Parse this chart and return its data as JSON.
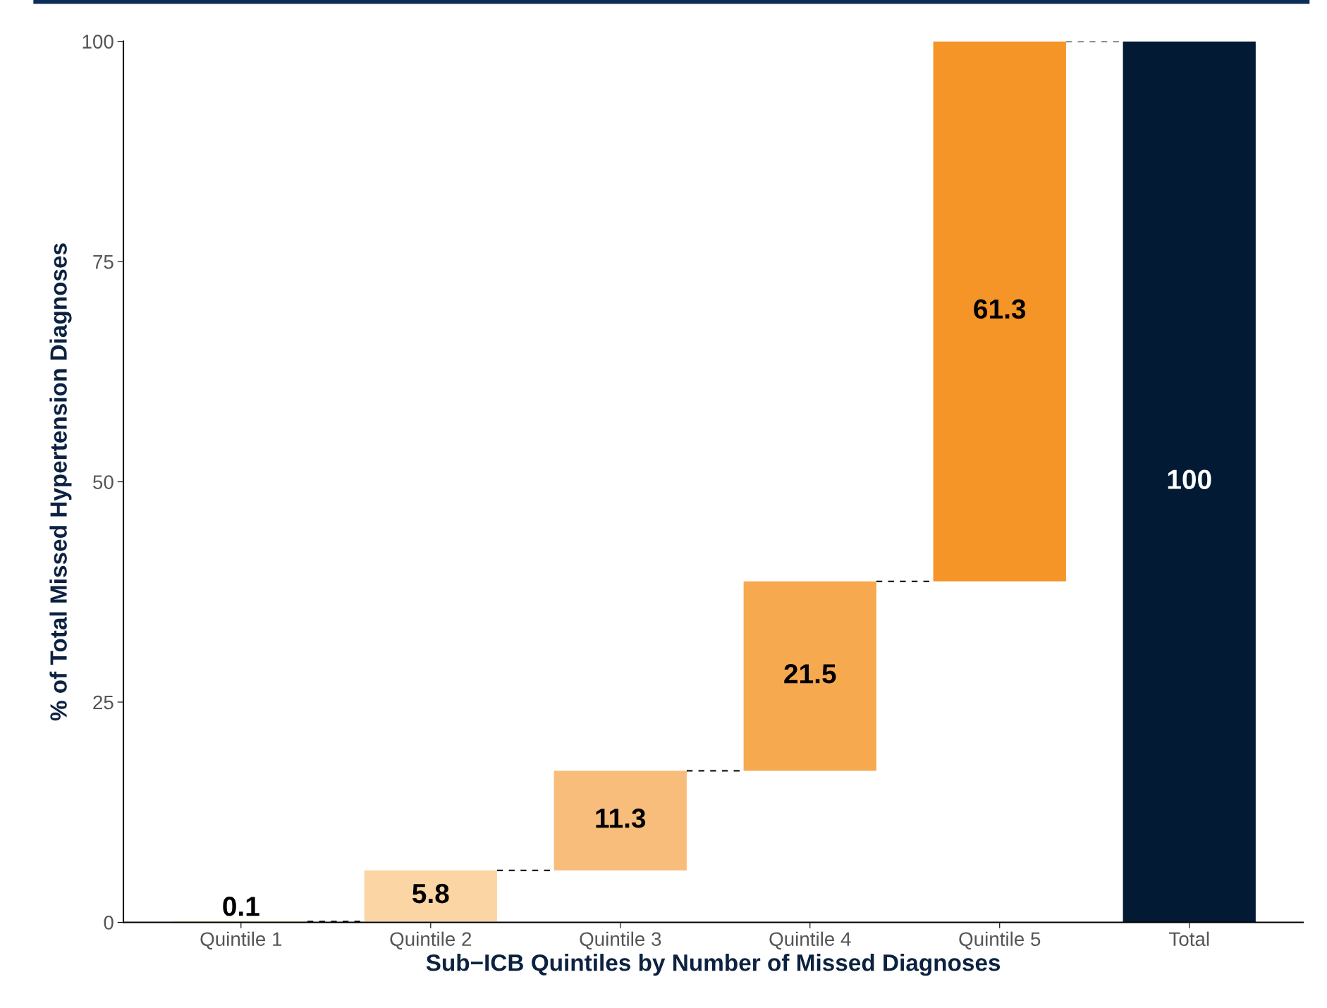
{
  "chart_data": {
    "type": "bar",
    "xlabel": "Sub−ICB Quintiles by Number of Missed Diagnoses",
    "ylabel": "% of Total Missed Hypertension Diagnoses",
    "categories": [
      "Quintile 1",
      "Quintile 2",
      "Quintile 3",
      "Quintile 4",
      "Quintile 5",
      "Total"
    ],
    "values": [
      0.1,
      5.8,
      11.3,
      21.5,
      61.3,
      100
    ],
    "base": [
      0,
      0.1,
      5.9,
      17.2,
      38.7,
      0
    ],
    "colors": [
      "#fdd9ab",
      "#fcd5a5",
      "#f8bd7a",
      "#f7a94f",
      "#f59427",
      "#021a33"
    ],
    "ylim": [
      0,
      100
    ],
    "yticks": [
      0,
      25,
      50,
      75,
      100
    ],
    "data_labels": true,
    "line_style": "dashed",
    "grid": false,
    "legend": false
  }
}
